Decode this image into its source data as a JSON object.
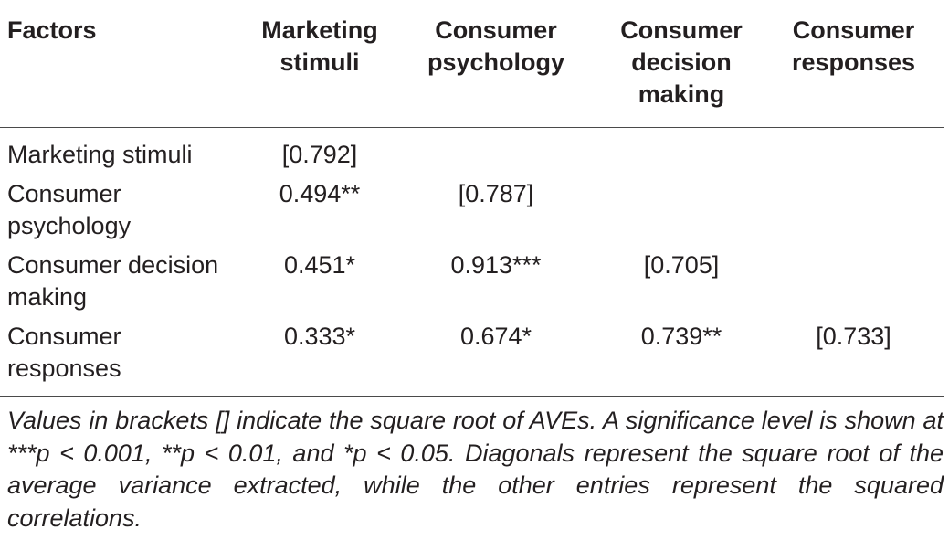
{
  "table": {
    "headers": [
      "Factors",
      "Marketing stimuli",
      "Consumer psychology",
      "Consumer decision making",
      "Consumer responses"
    ],
    "header_lines": [
      [
        "Factors"
      ],
      [
        "Marketing",
        "stimuli"
      ],
      [
        "Consumer",
        "psychology"
      ],
      [
        "Consumer",
        "decision",
        "making"
      ],
      [
        "Consumer",
        "responses"
      ]
    ],
    "rows": [
      {
        "label_lines": [
          "Marketing stimuli"
        ],
        "cells": [
          "[0.792]",
          "",
          "",
          ""
        ]
      },
      {
        "label_lines": [
          "Consumer",
          "psychology"
        ],
        "cells": [
          "0.494**",
          "[0.787]",
          "",
          ""
        ]
      },
      {
        "label_lines": [
          "Consumer decision",
          "making"
        ],
        "cells": [
          "0.451*",
          "0.913***",
          "[0.705]",
          ""
        ]
      },
      {
        "label_lines": [
          "Consumer",
          "responses"
        ],
        "cells": [
          "0.333*",
          "0.674*",
          "0.739**",
          "[0.733]"
        ]
      }
    ]
  },
  "footnote": "Values in brackets [] indicate the square root of AVEs. A significance level is shown at ***p < 0.001, **p < 0.01, and *p < 0.05. Diagonals represent the square root of the average variance extracted, while the other entries represent the squared correlations."
}
